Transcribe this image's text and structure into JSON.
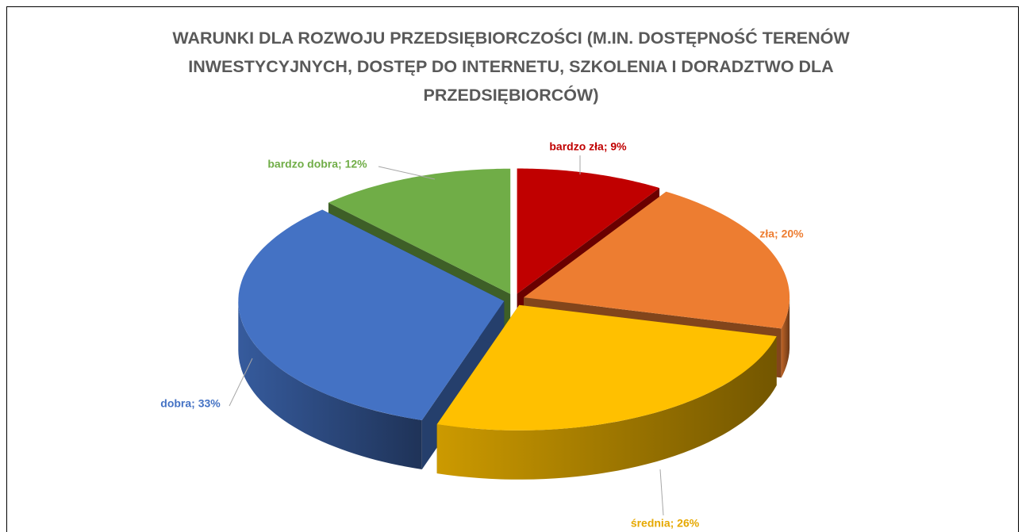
{
  "chart_data": {
    "type": "pie3d",
    "title": "WARUNKI DLA ROZWOJU PRZEDSIĘBIORCZOŚCI (M.IN. DOSTĘPNOŚĆ TERENÓW INWESTYCYJNYCH, DOSTĘP DO INTERNETU, SZKOLENIA I DORADZTWO DLA PRZEDSIĘBIORCÓW)",
    "values": [
      9,
      20,
      26,
      33,
      12
    ],
    "value_labels": [
      "bardzo zła; 9%",
      "zła; 20%",
      "średnia; 26%",
      "dobra; 33%",
      "bardzo dobra; 12%"
    ],
    "colors": [
      "#c00000",
      "#ed7d31",
      "#ffc000",
      "#4472c4",
      "#70ad47"
    ],
    "label_colors": [
      "#c00000",
      "#ed7d31",
      "#e6a800",
      "#4472c4",
      "#70ad47"
    ]
  }
}
